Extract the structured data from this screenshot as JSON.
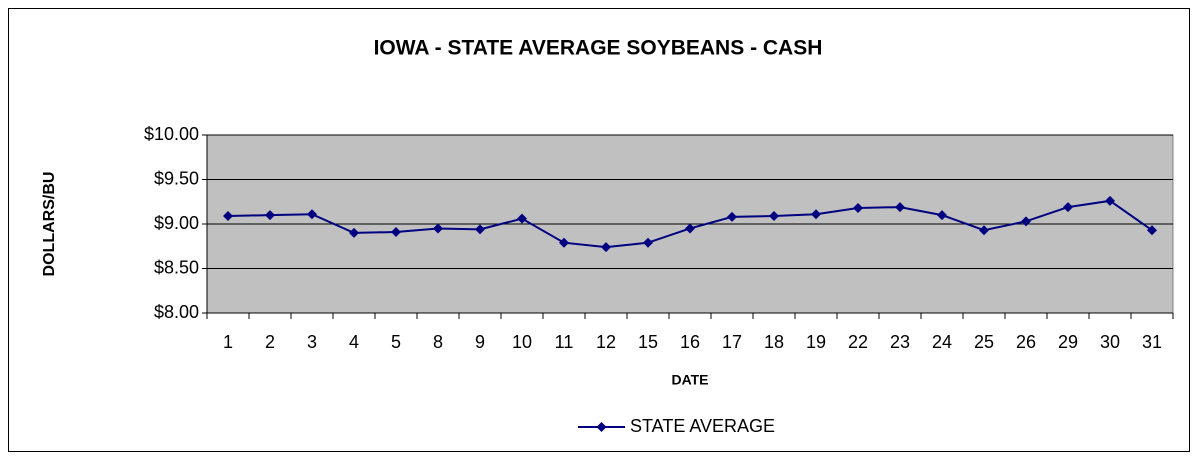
{
  "chart_data": {
    "type": "line",
    "title": "IOWA - STATE AVERAGE SOYBEANS - CASH",
    "x_label": "DATE",
    "y_label": "DOLLARS/BU",
    "categories": [
      "1",
      "2",
      "3",
      "4",
      "5",
      "8",
      "9",
      "10",
      "11",
      "12",
      "15",
      "16",
      "17",
      "18",
      "19",
      "22",
      "23",
      "24",
      "25",
      "26",
      "29",
      "30",
      "31"
    ],
    "series": [
      {
        "name": "STATE AVERAGE",
        "color": "#000080",
        "values": [
          9.09,
          9.1,
          9.11,
          8.9,
          8.91,
          8.95,
          8.94,
          9.06,
          8.79,
          8.74,
          8.79,
          8.95,
          9.08,
          9.09,
          9.11,
          9.18,
          9.19,
          9.1,
          8.93,
          9.03,
          9.19,
          9.26,
          8.93
        ]
      }
    ],
    "ylim": [
      8,
      10
    ],
    "yticks": [
      {
        "value": 8,
        "label": "$8.00"
      },
      {
        "value": 8.5,
        "label": "$8.50"
      },
      {
        "value": 9,
        "label": "$9.00"
      },
      {
        "value": 9.5,
        "label": "$9.50"
      },
      {
        "value": 10,
        "label": "$10.00"
      }
    ],
    "grid": true,
    "legend": "bottom"
  }
}
